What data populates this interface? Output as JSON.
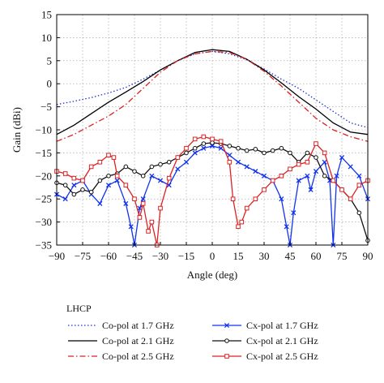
{
  "chart_data": {
    "type": "line",
    "xlabel": "Angle (deg)",
    "ylabel": "Gain (dBi)",
    "xlim": [
      -90,
      90
    ],
    "ylim": [
      -35,
      15
    ],
    "x_ticks": [
      -90,
      -75,
      -60,
      -45,
      -30,
      -15,
      0,
      15,
      30,
      45,
      60,
      75,
      90
    ],
    "y_ticks": [
      -35,
      -30,
      -25,
      -20,
      -15,
      -10,
      -5,
      0,
      5,
      10,
      15
    ],
    "grid": true,
    "legend_title": "LHCP",
    "legend_position": "bottom",
    "series": [
      {
        "name": "Co-pol at 1.7 GHz",
        "color": "#2233cc",
        "dash": "dotted",
        "marker": "none",
        "x": [
          -90,
          -80,
          -70,
          -60,
          -50,
          -40,
          -30,
          -20,
          -10,
          0,
          10,
          20,
          30,
          40,
          50,
          60,
          70,
          80,
          90
        ],
        "y": [
          -4.5,
          -3.8,
          -3,
          -2,
          -0.8,
          1,
          3,
          5,
          6.5,
          7,
          6.5,
          5.2,
          3.2,
          1,
          -1,
          -3.5,
          -6,
          -8.5,
          -9.5
        ]
      },
      {
        "name": "Co-pol at 2.1 GHz",
        "color": "#000000",
        "dash": "solid",
        "marker": "none",
        "x": [
          -90,
          -80,
          -70,
          -60,
          -50,
          -40,
          -30,
          -20,
          -10,
          0,
          10,
          20,
          30,
          40,
          50,
          60,
          70,
          80,
          90
        ],
        "y": [
          -11,
          -9,
          -6.5,
          -4,
          -1.8,
          0.5,
          3,
          5,
          6.8,
          7.4,
          7,
          5.3,
          3,
          0.2,
          -2.8,
          -5.5,
          -8.5,
          -10.5,
          -11
        ]
      },
      {
        "name": "Co-pol at 2.5 GHz",
        "color": "#dd2222",
        "dash": "dashdot",
        "marker": "none",
        "x": [
          -90,
          -80,
          -70,
          -60,
          -50,
          -40,
          -30,
          -20,
          -10,
          0,
          10,
          20,
          30,
          40,
          50,
          60,
          70,
          80,
          90
        ],
        "y": [
          -12.5,
          -11,
          -9,
          -7,
          -4.5,
          -1,
          2.5,
          5,
          6.5,
          7,
          6.8,
          5.3,
          2.7,
          -0.5,
          -4,
          -7.5,
          -10,
          -11.5,
          -12.5
        ]
      },
      {
        "name": "Cx-pol at 1.7 GHz",
        "color": "#1133ee",
        "dash": "solid",
        "marker": "x",
        "x": [
          -90,
          -85,
          -80,
          -75,
          -70,
          -65,
          -60,
          -55,
          -50,
          -47,
          -45,
          -42,
          -40,
          -35,
          -30,
          -25,
          -20,
          -15,
          -10,
          -5,
          0,
          5,
          10,
          15,
          20,
          25,
          30,
          35,
          40,
          43,
          45,
          47,
          50,
          55,
          57,
          60,
          65,
          68,
          70,
          72,
          75,
          80,
          85,
          90
        ],
        "y": [
          -24,
          -25,
          -22,
          -21,
          -24,
          -26,
          -22,
          -21,
          -26,
          -31,
          -35,
          -27,
          -25,
          -20,
          -21,
          -22,
          -18.5,
          -17,
          -15,
          -14,
          -13.5,
          -14,
          -15.5,
          -17,
          -18,
          -19,
          -20,
          -21,
          -25,
          -31,
          -35,
          -28,
          -21,
          -20,
          -23,
          -19,
          -17,
          -21,
          -35,
          -20,
          -16,
          -18,
          -20,
          -25
        ]
      },
      {
        "name": "Cx-pol at 2.1 GHz",
        "color": "#111111",
        "dash": "solid",
        "marker": "circle",
        "x": [
          -90,
          -85,
          -80,
          -75,
          -70,
          -65,
          -60,
          -55,
          -50,
          -45,
          -40,
          -35,
          -30,
          -25,
          -20,
          -15,
          -10,
          -5,
          0,
          5,
          10,
          15,
          20,
          25,
          30,
          35,
          40,
          45,
          50,
          55,
          60,
          65,
          70,
          75,
          80,
          85,
          90
        ],
        "y": [
          -21.5,
          -22,
          -24,
          -23,
          -23.5,
          -21,
          -20,
          -19.5,
          -18,
          -19,
          -20,
          -18,
          -17.5,
          -17,
          -16,
          -15,
          -14,
          -13,
          -12.8,
          -13,
          -13.5,
          -14,
          -14.5,
          -14.2,
          -15,
          -14.5,
          -14,
          -15,
          -17,
          -15,
          -16,
          -20,
          -21,
          -23,
          -25,
          -28,
          -34
        ]
      },
      {
        "name": "Cx-pol at 2.5 GHz",
        "color": "#dd2222",
        "dash": "solid",
        "marker": "square",
        "x": [
          -90,
          -85,
          -80,
          -75,
          -70,
          -65,
          -60,
          -57,
          -55,
          -50,
          -45,
          -42,
          -40,
          -37,
          -35,
          -32,
          -30,
          -25,
          -20,
          -15,
          -10,
          -5,
          0,
          5,
          10,
          12,
          15,
          17,
          20,
          25,
          30,
          35,
          40,
          45,
          50,
          55,
          60,
          65,
          70,
          75,
          80,
          85,
          90
        ],
        "y": [
          -19,
          -19.5,
          -20.5,
          -21,
          -18,
          -17,
          -15.5,
          -16,
          -20,
          -22,
          -25,
          -29,
          -26,
          -32,
          -30,
          -35,
          -27,
          -20.5,
          -16,
          -14,
          -12,
          -11.5,
          -12,
          -12.5,
          -17,
          -25,
          -31,
          -30,
          -27,
          -25,
          -23,
          -21,
          -20,
          -18.5,
          -17.5,
          -17,
          -13,
          -15,
          -21,
          -23,
          -25,
          -22,
          -21
        ]
      }
    ]
  }
}
